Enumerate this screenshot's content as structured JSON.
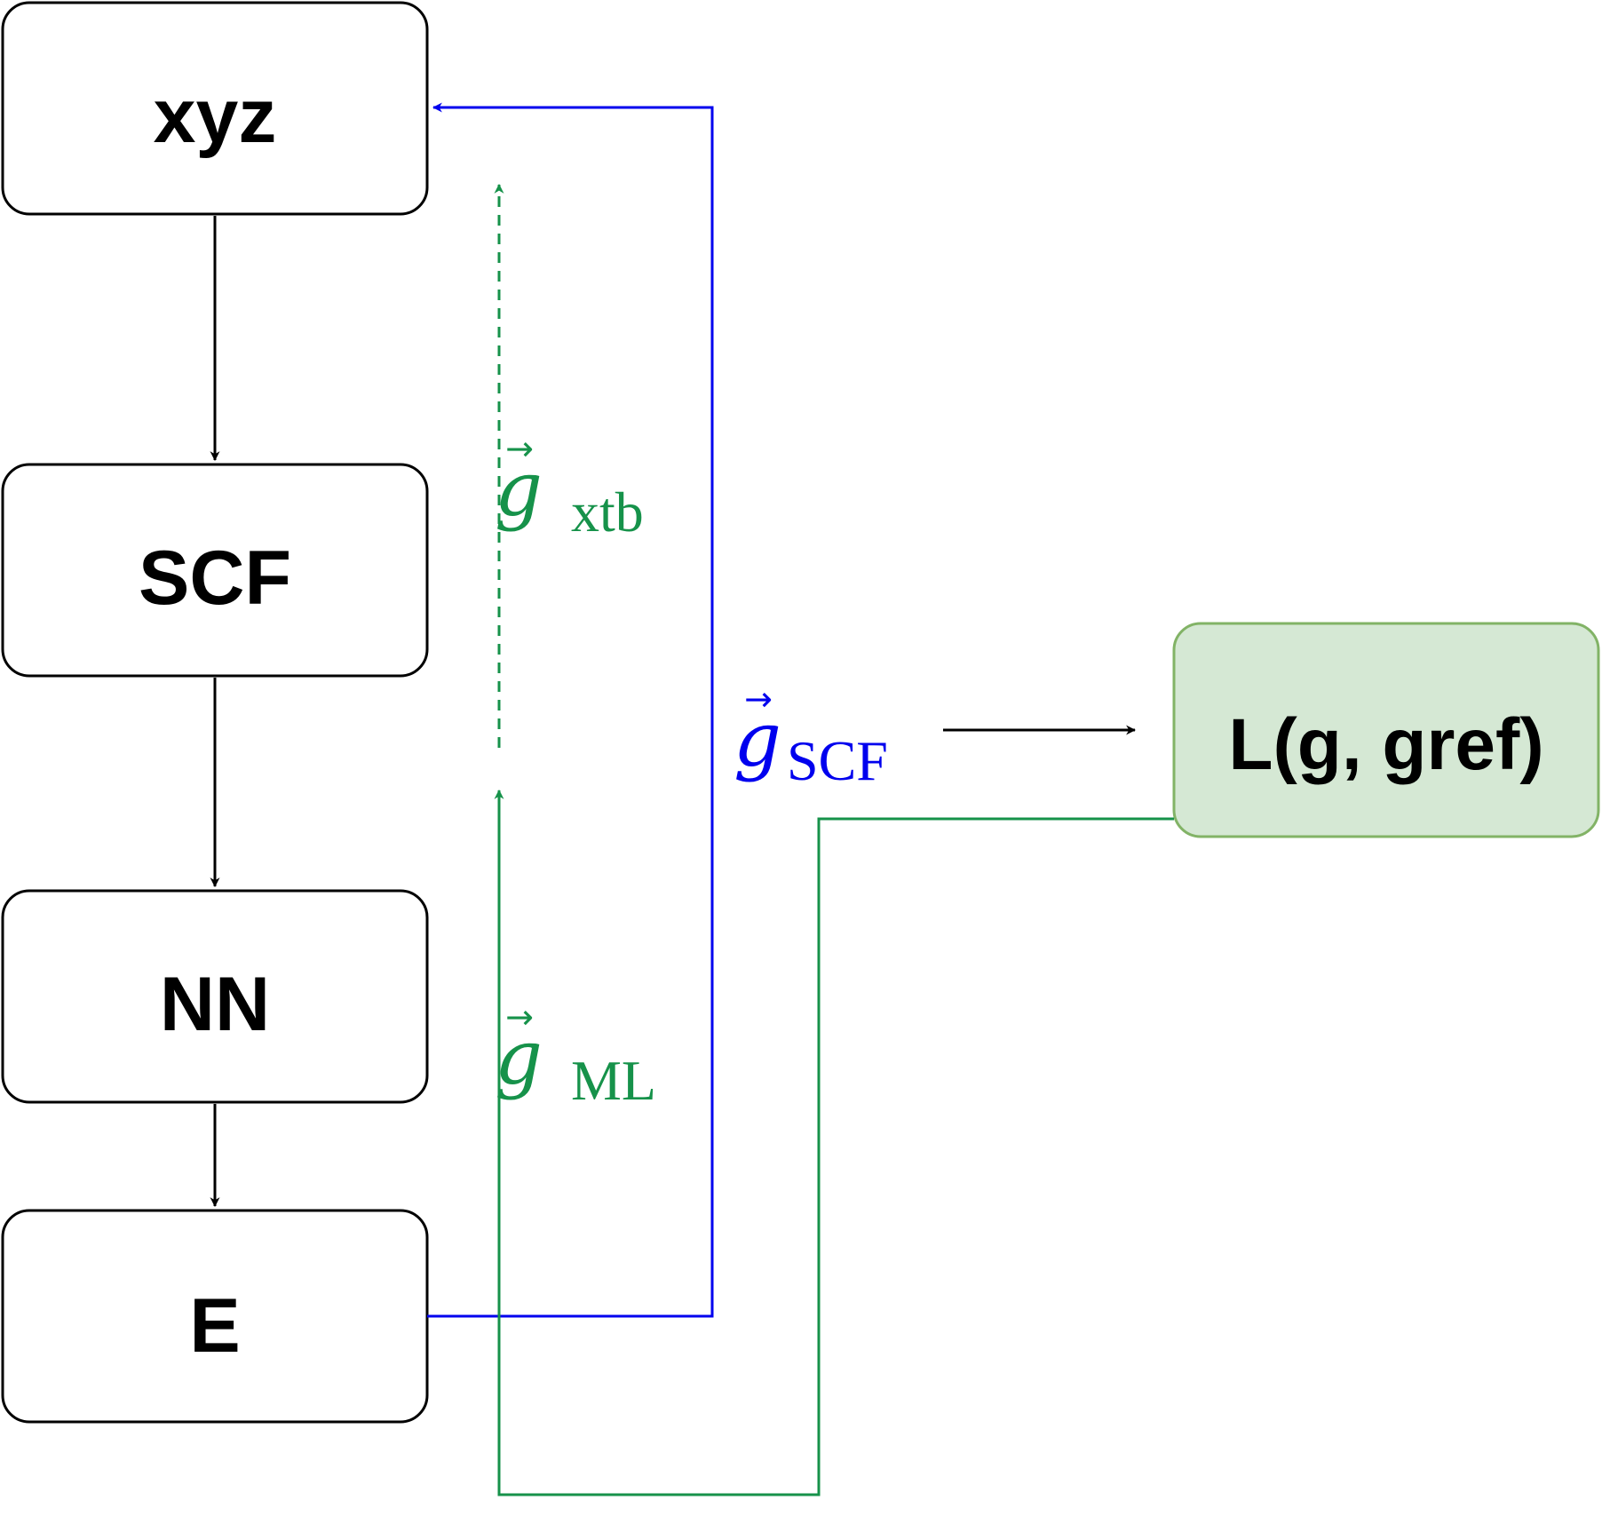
{
  "nodes": {
    "xyz": {
      "label": "xyz"
    },
    "scf": {
      "label": "SCF"
    },
    "nn": {
      "label": "NN"
    },
    "e": {
      "label": "E"
    },
    "loss": {
      "label": "L(g, gref)"
    }
  },
  "gradients": {
    "xtb": {
      "symbol": "g",
      "arrow": "→",
      "subscript": "xtb"
    },
    "ml": {
      "symbol": "g",
      "arrow": "→",
      "subscript": "ML"
    },
    "scf": {
      "symbol": "g",
      "arrow": "→",
      "subscript": "SCF"
    }
  },
  "colors": {
    "black": "#000000",
    "blue": "#0000ee",
    "green": "#16924a",
    "loss_fill": "#d5e8d4",
    "loss_stroke": "#82b366"
  }
}
